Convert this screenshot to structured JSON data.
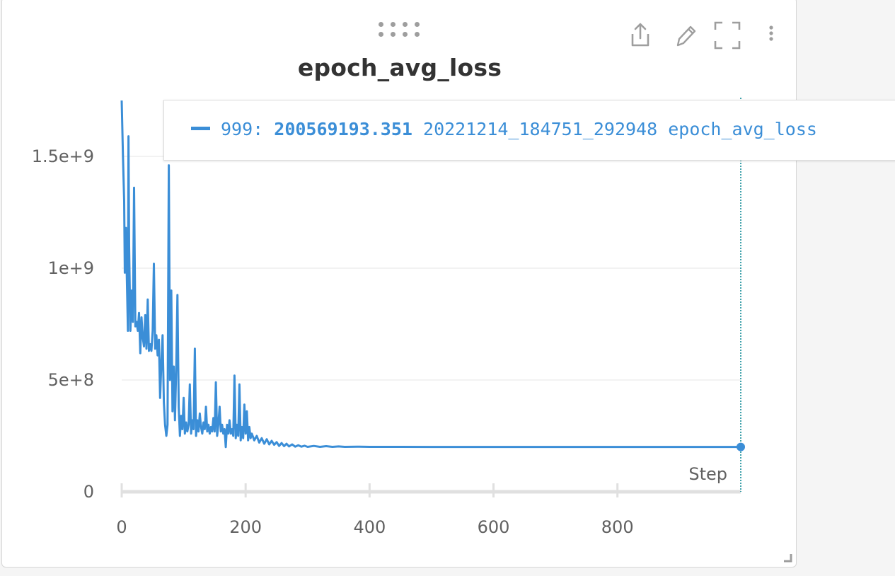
{
  "panel": {
    "title": "epoch_avg_loss",
    "toolbar": {
      "share_icon": "share-icon",
      "edit_icon": "pencil-icon",
      "fullscreen_icon": "fullscreen-icon",
      "more_icon": "more-vertical-icon",
      "drag_icon": "drag-handle-icon"
    }
  },
  "tooltip": {
    "step": "999:",
    "value": "200569193.351",
    "run": "20221214_184751_292948",
    "metric": "epoch_avg_loss",
    "color": "#3b8ed7"
  },
  "chart_data": {
    "type": "line",
    "title": "epoch_avg_loss",
    "xlabel": "Step",
    "ylabel": "",
    "xlim": [
      0,
      999
    ],
    "ylim": [
      0,
      1750000000
    ],
    "x_ticks": [
      0,
      200,
      400,
      600,
      800
    ],
    "x_tick_labels": [
      "0",
      "200",
      "400",
      "600",
      "800"
    ],
    "y_ticks": [
      0,
      500000000,
      1000000000,
      1500000000
    ],
    "y_tick_labels": [
      "0",
      "5e+8",
      "1e+9",
      "1.5e+9"
    ],
    "grid": true,
    "series": [
      {
        "name": "20221214_184751_292948",
        "color": "#3b8ed7",
        "points": [
          [
            0,
            1750000000
          ],
          [
            2,
            1500000000
          ],
          [
            4,
            1300000000
          ],
          [
            5,
            980000000
          ],
          [
            7,
            1180000000
          ],
          [
            8,
            1000000000
          ],
          [
            10,
            720000000
          ],
          [
            11,
            1590000000
          ],
          [
            12,
            1100000000
          ],
          [
            14,
            720000000
          ],
          [
            16,
            900000000
          ],
          [
            18,
            760000000
          ],
          [
            20,
            1360000000
          ],
          [
            22,
            740000000
          ],
          [
            24,
            760000000
          ],
          [
            26,
            720000000
          ],
          [
            28,
            800000000
          ],
          [
            30,
            620000000
          ],
          [
            32,
            780000000
          ],
          [
            34,
            690000000
          ],
          [
            36,
            650000000
          ],
          [
            38,
            790000000
          ],
          [
            40,
            640000000
          ],
          [
            42,
            860000000
          ],
          [
            44,
            630000000
          ],
          [
            46,
            660000000
          ],
          [
            48,
            630000000
          ],
          [
            50,
            720000000
          ],
          [
            52,
            1020000000
          ],
          [
            54,
            640000000
          ],
          [
            56,
            700000000
          ],
          [
            58,
            610000000
          ],
          [
            60,
            680000000
          ],
          [
            62,
            420000000
          ],
          [
            64,
            580000000
          ],
          [
            66,
            700000000
          ],
          [
            68,
            400000000
          ],
          [
            70,
            300000000
          ],
          [
            72,
            250000000
          ],
          [
            74,
            300000000
          ],
          [
            76,
            1460000000
          ],
          [
            78,
            500000000
          ],
          [
            80,
            900000000
          ],
          [
            82,
            360000000
          ],
          [
            84,
            560000000
          ],
          [
            86,
            320000000
          ],
          [
            88,
            560000000
          ],
          [
            90,
            880000000
          ],
          [
            92,
            380000000
          ],
          [
            94,
            250000000
          ],
          [
            96,
            340000000
          ],
          [
            98,
            280000000
          ],
          [
            100,
            420000000
          ],
          [
            102,
            260000000
          ],
          [
            104,
            310000000
          ],
          [
            106,
            270000000
          ],
          [
            108,
            300000000
          ],
          [
            110,
            480000000
          ],
          [
            112,
            260000000
          ],
          [
            114,
            320000000
          ],
          [
            116,
            280000000
          ],
          [
            118,
            640000000
          ],
          [
            120,
            250000000
          ],
          [
            122,
            320000000
          ],
          [
            124,
            270000000
          ],
          [
            126,
            350000000
          ],
          [
            128,
            290000000
          ],
          [
            130,
            260000000
          ],
          [
            132,
            310000000
          ],
          [
            134,
            280000000
          ],
          [
            136,
            380000000
          ],
          [
            138,
            270000000
          ],
          [
            140,
            300000000
          ],
          [
            142,
            260000000
          ],
          [
            144,
            290000000
          ],
          [
            146,
            270000000
          ],
          [
            148,
            330000000
          ],
          [
            150,
            270000000
          ],
          [
            152,
            490000000
          ],
          [
            154,
            250000000
          ],
          [
            156,
            300000000
          ],
          [
            158,
            380000000
          ],
          [
            160,
            270000000
          ],
          [
            162,
            300000000
          ],
          [
            164,
            260000000
          ],
          [
            166,
            280000000
          ],
          [
            168,
            200000000
          ],
          [
            170,
            300000000
          ],
          [
            172,
            260000000
          ],
          [
            174,
            320000000
          ],
          [
            176,
            260000000
          ],
          [
            178,
            280000000
          ],
          [
            180,
            250000000
          ],
          [
            182,
            520000000
          ],
          [
            184,
            240000000
          ],
          [
            186,
            300000000
          ],
          [
            188,
            250000000
          ],
          [
            190,
            480000000
          ],
          [
            192,
            230000000
          ],
          [
            194,
            290000000
          ],
          [
            196,
            240000000
          ],
          [
            198,
            390000000
          ],
          [
            200,
            260000000
          ],
          [
            202,
            360000000
          ],
          [
            204,
            230000000
          ],
          [
            206,
            290000000
          ],
          [
            208,
            240000000
          ],
          [
            210,
            260000000
          ],
          [
            214,
            230000000
          ],
          [
            218,
            250000000
          ],
          [
            222,
            220000000
          ],
          [
            226,
            240000000
          ],
          [
            230,
            215000000
          ],
          [
            234,
            235000000
          ],
          [
            238,
            212000000
          ],
          [
            242,
            228000000
          ],
          [
            246,
            210000000
          ],
          [
            250,
            222000000
          ],
          [
            254,
            205000000
          ],
          [
            258,
            218000000
          ],
          [
            262,
            204000000
          ],
          [
            266,
            215000000
          ],
          [
            270,
            203000000
          ],
          [
            275,
            212000000
          ],
          [
            280,
            202000000
          ],
          [
            285,
            208000000
          ],
          [
            290,
            202000000
          ],
          [
            295,
            206000000
          ],
          [
            300,
            201000000
          ],
          [
            310,
            205000000
          ],
          [
            320,
            201000000
          ],
          [
            330,
            204000000
          ],
          [
            340,
            201000000
          ],
          [
            350,
            203000000
          ],
          [
            360,
            201000000
          ],
          [
            380,
            202000000
          ],
          [
            400,
            201000000
          ],
          [
            450,
            200800000
          ],
          [
            500,
            200700000
          ],
          [
            600,
            200650000
          ],
          [
            700,
            200600000
          ],
          [
            800,
            200580000
          ],
          [
            900,
            200575000
          ],
          [
            999,
            200569193
          ]
        ]
      }
    ]
  }
}
